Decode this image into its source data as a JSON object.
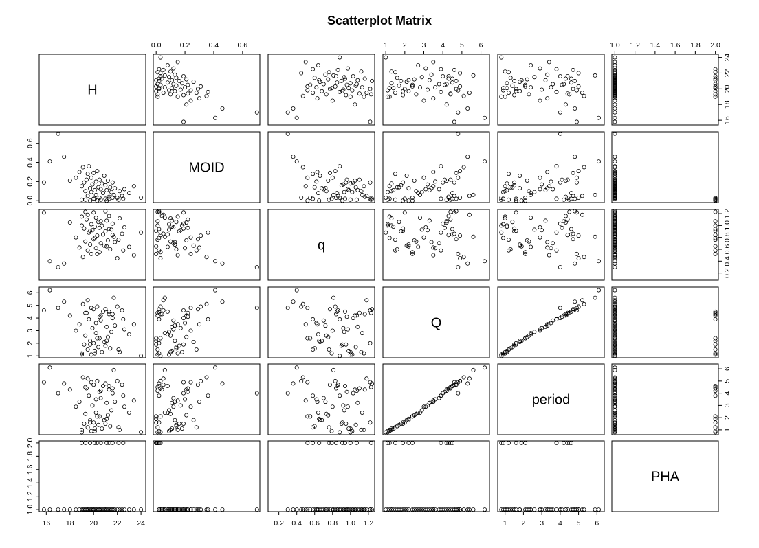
{
  "chart_data": {
    "type": "scatter",
    "title": "Scatterplot Matrix",
    "variables": [
      "H",
      "MOID",
      "q",
      "Q",
      "period",
      "PHA"
    ],
    "ranges": {
      "H": [
        15.4,
        24.4
      ],
      "MOID": [
        -0.02,
        0.72
      ],
      "q": [
        0.08,
        1.27
      ],
      "Q": [
        0.85,
        6.45
      ],
      "period": [
        0.6,
        6.4
      ],
      "PHA": [
        0.97,
        2.03
      ]
    },
    "ticks": {
      "H": [
        16,
        18,
        20,
        22,
        24
      ],
      "MOID": [
        0.0,
        0.2,
        0.4,
        0.6
      ],
      "q": [
        0.2,
        0.4,
        0.6,
        0.8,
        1.0,
        1.2
      ],
      "Q": [
        1,
        2,
        3,
        4,
        5,
        6
      ],
      "period": [
        1,
        2,
        3,
        4,
        5,
        6
      ],
      "PHA": [
        1.0,
        1.2,
        1.4,
        1.6,
        1.8,
        2.0
      ]
    },
    "tick_labels": {
      "H": [
        "16",
        "18",
        "20",
        "22",
        "24"
      ],
      "MOID": [
        "0.0",
        "0.2",
        "0.4",
        "0.6"
      ],
      "q": [
        "0.2",
        "0.4",
        "0.6",
        "0.8",
        "1.0",
        "1.2"
      ],
      "Q": [
        "1",
        "2",
        "3",
        "4",
        "5",
        "6"
      ],
      "period": [
        "1",
        "2",
        "3",
        "4",
        "5",
        "6"
      ],
      "PHA": [
        "1.0",
        "1.2",
        "1.4",
        "1.6",
        "1.8",
        "2.0"
      ]
    },
    "axes_layout": {
      "top": [
        "MOID",
        "Q",
        "PHA"
      ],
      "right": [
        "H",
        "q",
        "period"
      ],
      "bottom": [
        "H",
        "q",
        "period"
      ],
      "left": [
        "MOID",
        "Q",
        "PHA"
      ]
    },
    "axis_label_style": {
      "top": "parallel",
      "bottom": "parallel",
      "left": "vertical",
      "right": "vertical"
    },
    "grid": false,
    "point_style": "open-circle",
    "observations": {
      "H": [
        15.8,
        16.3,
        17.0,
        17.5,
        18.0,
        18.5,
        18.8,
        19.0,
        19.1,
        19.2,
        19.3,
        19.4,
        19.5,
        19.5,
        19.6,
        19.7,
        19.8,
        19.8,
        19.9,
        20.0,
        20.0,
        20.1,
        20.2,
        20.2,
        20.3,
        20.4,
        20.5,
        20.5,
        20.6,
        20.7,
        20.8,
        20.9,
        21.0,
        21.0,
        21.1,
        21.2,
        21.3,
        21.4,
        21.5,
        21.6,
        21.7,
        21.8,
        22.0,
        22.2,
        22.4,
        22.6,
        23.0,
        23.4,
        24.0,
        19.3,
        19.7,
        20.1,
        20.6,
        21.1,
        21.6,
        19.0,
        20.3,
        21.3,
        22.1,
        22.5
      ],
      "MOID": [
        0.19,
        0.41,
        0.7,
        0.46,
        0.21,
        0.24,
        0.3,
        0.15,
        0.35,
        0.19,
        0.1,
        0.22,
        0.28,
        0.05,
        0.36,
        0.13,
        0.09,
        0.24,
        0.17,
        0.02,
        0.29,
        0.11,
        0.2,
        0.06,
        0.31,
        0.14,
        0.03,
        0.22,
        0.12,
        0.18,
        0.08,
        0.26,
        0.02,
        0.16,
        0.11,
        0.21,
        0.04,
        0.14,
        0.09,
        0.19,
        0.06,
        0.13,
        0.03,
        0.1,
        0.05,
        0.12,
        0.08,
        0.15,
        0.03,
        0.01,
        0.0,
        0.02,
        0.01,
        0.0,
        0.03,
        0.01,
        0.0,
        0.02,
        0.01,
        0.02
      ],
      "q": [
        1.22,
        0.4,
        0.3,
        0.36,
        1.05,
        0.8,
        0.63,
        1.15,
        0.47,
        0.95,
        0.73,
        1.1,
        0.58,
        1.18,
        0.88,
        0.68,
        1.02,
        0.52,
        0.92,
        1.22,
        0.77,
        0.98,
        0.62,
        1.13,
        0.83,
        1.06,
        0.55,
        0.96,
        0.7,
        1.0,
        0.85,
        0.66,
        1.24,
        0.9,
        1.08,
        0.75,
        1.16,
        0.6,
        0.93,
        1.03,
        0.81,
        0.72,
        0.45,
        1.12,
        0.86,
        0.97,
        0.64,
        0.5,
        0.88,
        1.23,
        0.91,
        0.79,
        1.07,
        0.65,
        0.84,
        1.0,
        0.52,
        0.94,
        0.76,
        0.58
      ],
      "Q": [
        4.6,
        6.2,
        4.8,
        5.3,
        4.2,
        3.0,
        3.5,
        1.2,
        5.1,
        1.9,
        2.6,
        4.4,
        1.5,
        5.4,
        3.9,
        2.2,
        1.1,
        4.8,
        3.2,
        2.0,
        4.7,
        1.4,
        3.6,
        2.8,
        4.9,
        1.7,
        2.4,
        4.1,
        3.8,
        1.3,
        4.5,
        2.1,
        4.7,
        1.8,
        3.3,
        2.5,
        4.3,
        1.6,
        2.9,
        4.0,
        5.6,
        3.4,
        4.9,
        1.3,
        4.6,
        3.1,
        2.7,
        3.5,
        1.0,
        4.4,
        1.9,
        1.2,
        4.2,
        2.2,
        4.3,
        1.1,
        2.4,
        4.5,
        1.5,
        3.9
      ],
      "period": [
        4.9,
        6.1,
        4.0,
        4.8,
        4.3,
        2.9,
        3.3,
        1.0,
        5.3,
        1.5,
        2.3,
        4.4,
        1.2,
        5.2,
        3.8,
        1.8,
        0.9,
        4.9,
        3.0,
        1.6,
        4.7,
        1.1,
        3.5,
        2.4,
        5.0,
        1.4,
        2.1,
        4.1,
        3.6,
        1.1,
        4.6,
        1.8,
        4.8,
        1.5,
        3.2,
        2.2,
        4.3,
        1.3,
        2.6,
        4.0,
        5.9,
        3.3,
        5.0,
        1.0,
        4.7,
        2.9,
        2.4,
        3.4,
        0.8,
        4.5,
        1.6,
        0.9,
        4.2,
        1.9,
        4.4,
        0.8,
        2.1,
        4.6,
        1.2,
        3.8
      ],
      "PHA": [
        1,
        1,
        1,
        1,
        1,
        1,
        1,
        1,
        1,
        1,
        1,
        1,
        1,
        1,
        1,
        1,
        1,
        1,
        1,
        1,
        1,
        1,
        1,
        1,
        1,
        1,
        1,
        1,
        1,
        1,
        1,
        1,
        1,
        1,
        1,
        1,
        1,
        1,
        1,
        1,
        1,
        1,
        1,
        1,
        1,
        1,
        1,
        1,
        1,
        2,
        2,
        2,
        2,
        2,
        2,
        2,
        2,
        2,
        2,
        2
      ]
    }
  }
}
